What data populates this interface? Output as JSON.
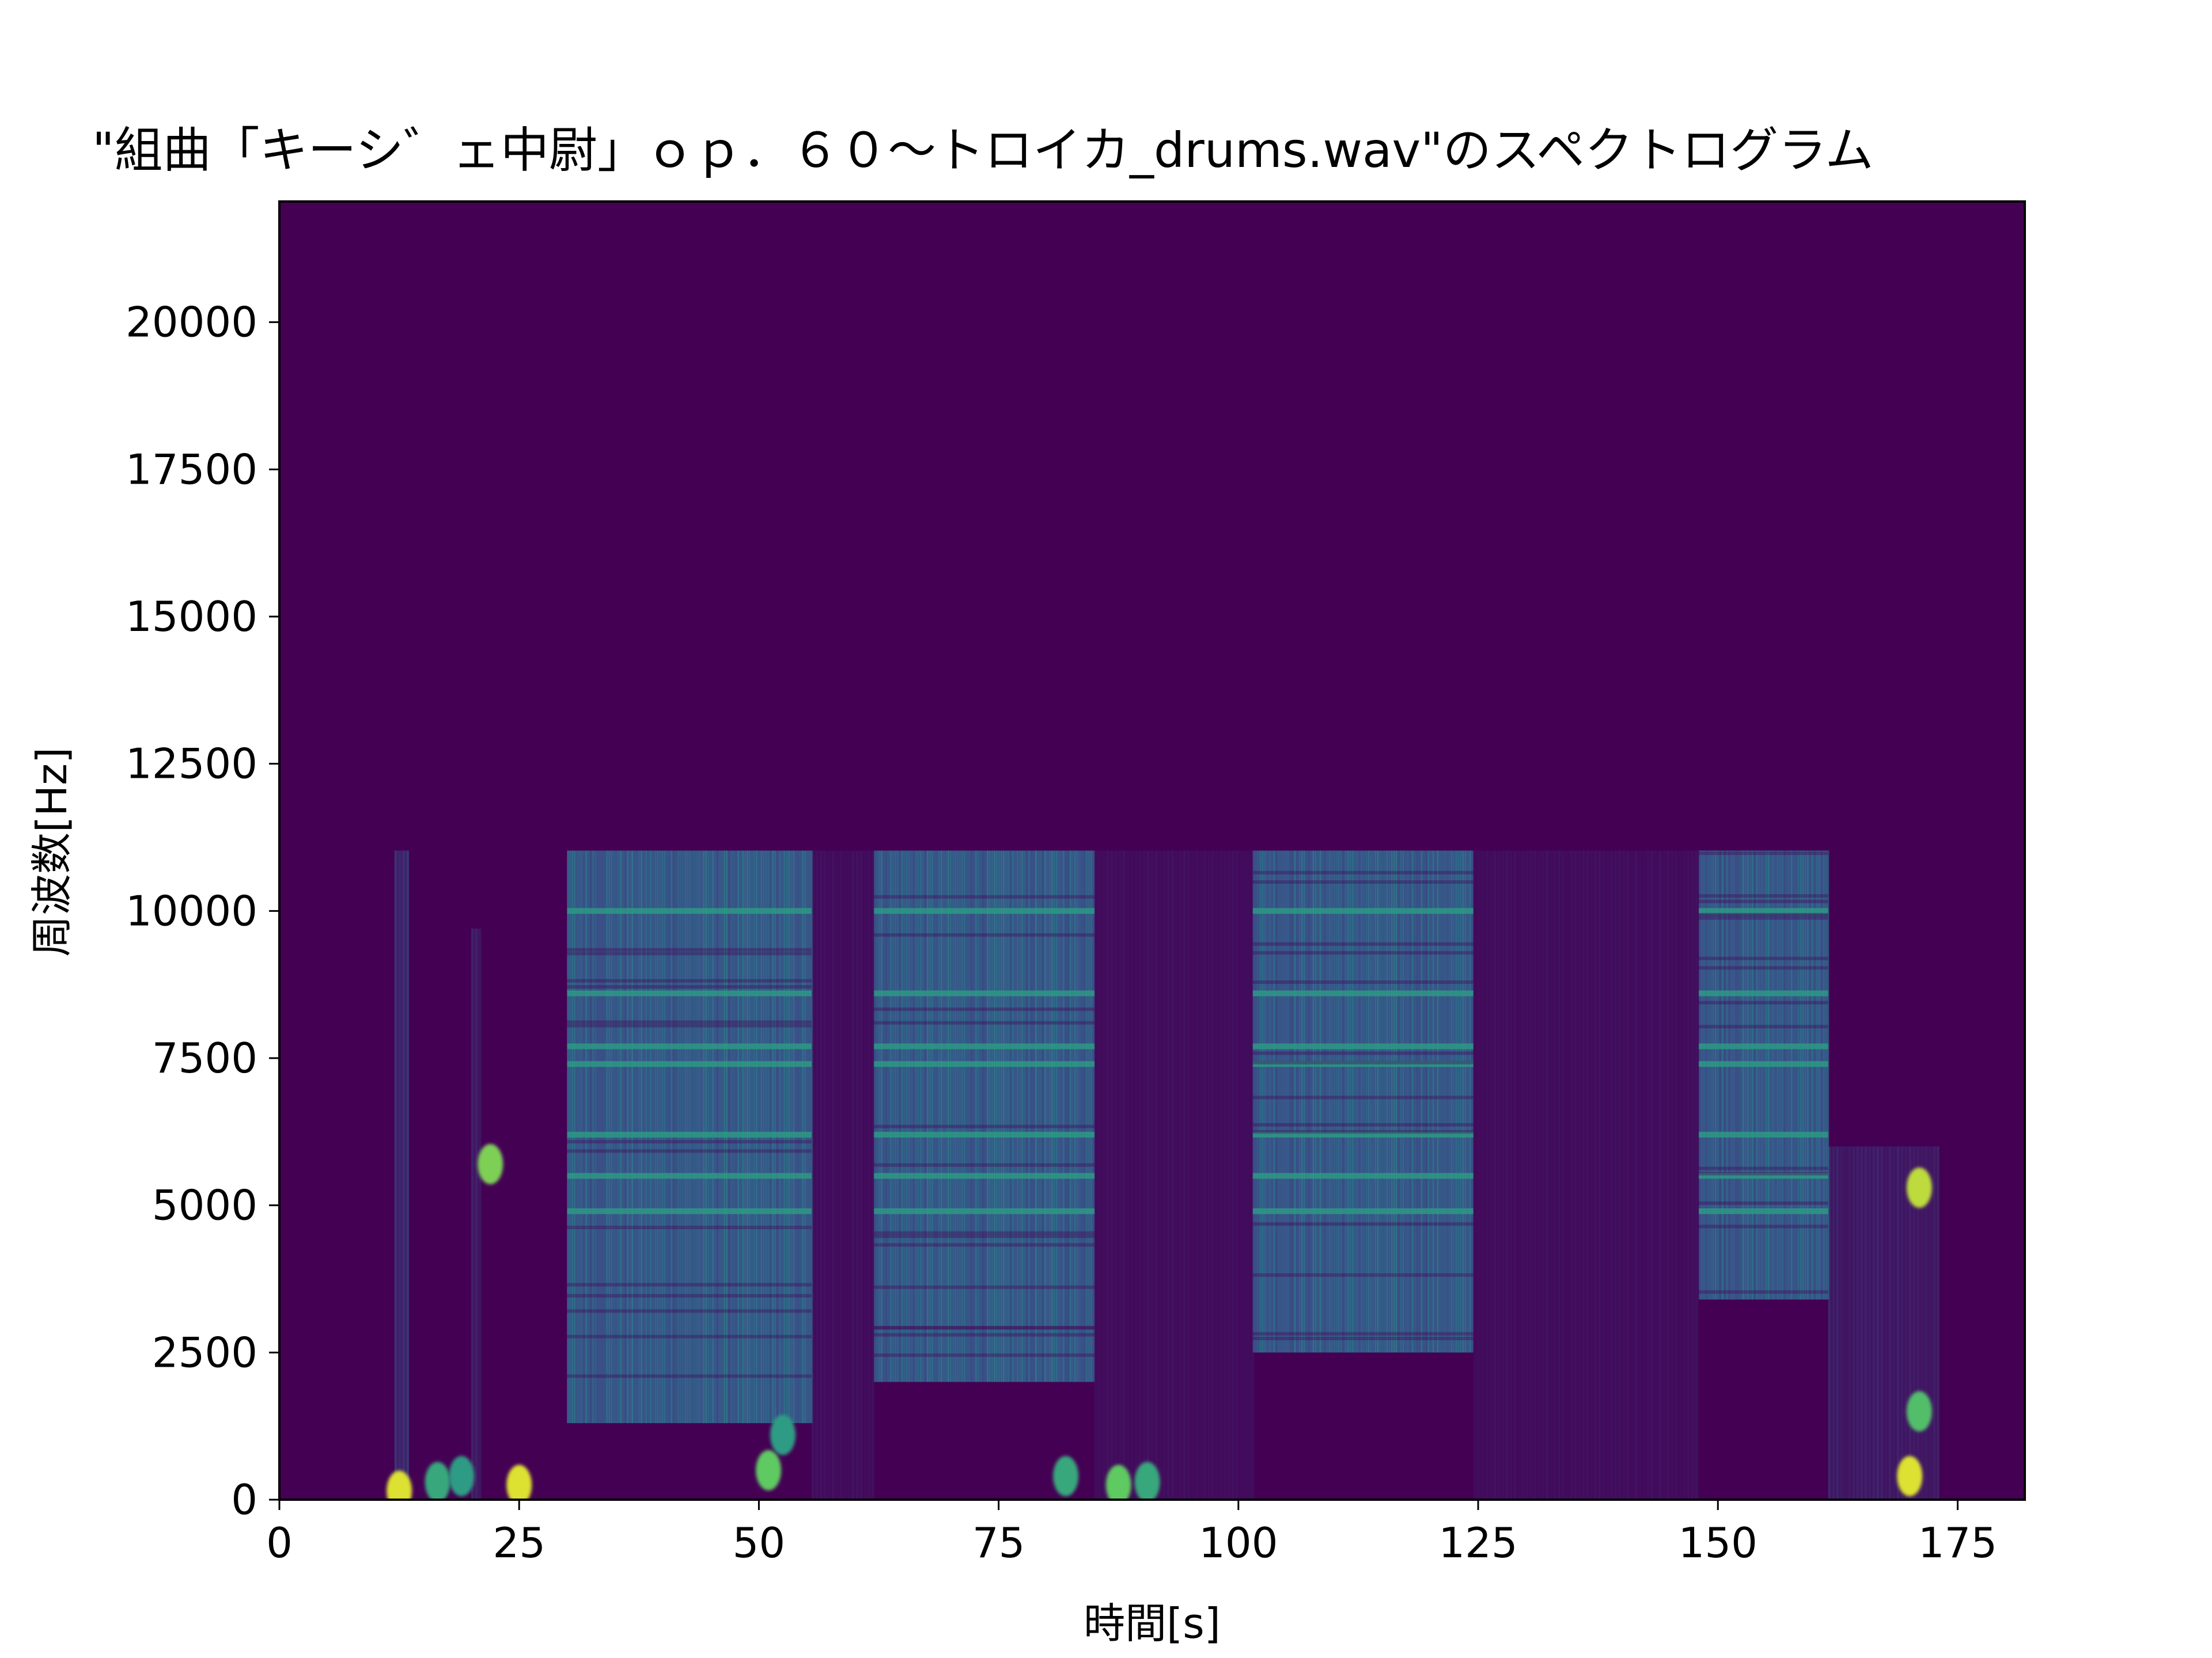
{
  "chart_data": {
    "type": "heatmap",
    "title": "\"組曲「キーシ゛ェ中尉」ｏｐ．６０～トロイカ_drums.wav\"のスペクトログラム",
    "xlabel": "時間[s]",
    "ylabel": "周波数[Hz]",
    "xlim": [
      0,
      182
    ],
    "ylim": [
      0,
      22050
    ],
    "x_ticks": [
      0,
      25,
      50,
      75,
      100,
      125,
      150,
      175
    ],
    "y_ticks": [
      0,
      2500,
      5000,
      7500,
      10000,
      12500,
      15000,
      17500,
      20000
    ],
    "x_tick_labels": [
      "0",
      "25",
      "50",
      "75",
      "100",
      "125",
      "150",
      "175"
    ],
    "y_tick_labels": [
      "0",
      "2500",
      "5000",
      "7500",
      "10000",
      "12500",
      "15000",
      "17500",
      "20000"
    ],
    "colormap": "viridis",
    "colors": {
      "background": "#440154",
      "mid": "#31688e",
      "teal": "#21918c",
      "green": "#5ec962",
      "yellow": "#fde725"
    },
    "frequency_cutoff_hz": 11025,
    "active_segments": [
      {
        "t_start": 30,
        "t_end": 55.5,
        "f_low": 1300,
        "f_high": 11025,
        "intensity": 0.5
      },
      {
        "t_start": 62,
        "t_end": 85,
        "f_low": 2000,
        "f_high": 11025,
        "intensity": 0.5
      },
      {
        "t_start": 101.5,
        "t_end": 124.5,
        "f_low": 2500,
        "f_high": 11025,
        "intensity": 0.5
      },
      {
        "t_start": 148,
        "t_end": 161.5,
        "f_low": 3400,
        "f_high": 11025,
        "intensity": 0.5
      }
    ],
    "faint_segments": [
      {
        "t_start": 12,
        "t_end": 13.5,
        "f_low": 0,
        "f_high": 11025,
        "intensity": 0.3
      },
      {
        "t_start": 20,
        "t_end": 21,
        "f_low": 0,
        "f_high": 9700,
        "intensity": 0.2
      },
      {
        "t_start": 55.5,
        "t_end": 62,
        "f_low": 0,
        "f_high": 11025,
        "intensity": 0.1
      },
      {
        "t_start": 85,
        "t_end": 101.5,
        "f_low": 0,
        "f_high": 11025,
        "intensity": 0.1
      },
      {
        "t_start": 124.5,
        "t_end": 148,
        "f_low": 0,
        "f_high": 11025,
        "intensity": 0.1
      },
      {
        "t_start": 161.5,
        "t_end": 173,
        "f_low": 0,
        "f_high": 6000,
        "intensity": 0.2
      }
    ],
    "bright_spots": [
      {
        "t": 12.5,
        "f": 150,
        "intensity": 0.95
      },
      {
        "t": 16.5,
        "f": 300,
        "intensity": 0.6
      },
      {
        "t": 19,
        "f": 400,
        "intensity": 0.55
      },
      {
        "t": 22,
        "f": 5700,
        "intensity": 0.8
      },
      {
        "t": 25,
        "f": 250,
        "intensity": 0.95
      },
      {
        "t": 51,
        "f": 500,
        "intensity": 0.75
      },
      {
        "t": 52.5,
        "f": 1100,
        "intensity": 0.55
      },
      {
        "t": 82,
        "f": 400,
        "intensity": 0.6
      },
      {
        "t": 87.5,
        "f": 250,
        "intensity": 0.75
      },
      {
        "t": 90.5,
        "f": 300,
        "intensity": 0.6
      },
      {
        "t": 170,
        "f": 400,
        "intensity": 0.95
      },
      {
        "t": 171,
        "f": 1500,
        "intensity": 0.7
      },
      {
        "t": 171,
        "f": 5300,
        "intensity": 0.9
      }
    ],
    "harmonic_lines_hz": [
      10000,
      8600,
      7700,
      7400,
      6200,
      5500,
      4900
    ],
    "grid": false,
    "legend": "none"
  }
}
